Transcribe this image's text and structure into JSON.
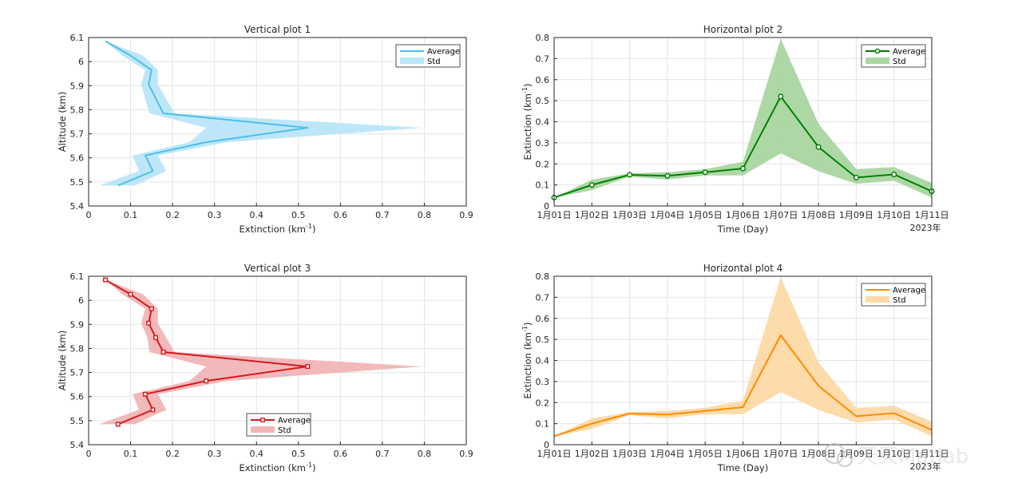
{
  "chart_data": [
    {
      "type": "line",
      "orientation": "vertical",
      "title": "Vertical plot 1",
      "xlabel": "Extinction (km",
      "xlabel_sup": "-1",
      "xlabel_end": ")",
      "ylabel": "Altitude (km)",
      "xlim": [
        0,
        0.9
      ],
      "ylim": [
        5.4,
        6.1
      ],
      "xticks": [
        "0",
        "0.1",
        "0.2",
        "0.3",
        "0.4",
        "0.5",
        "0.6",
        "0.7",
        "0.8",
        "0.9"
      ],
      "yticks": [
        "5.4",
        "5.5",
        "5.6",
        "5.7",
        "5.8",
        "5.9",
        "6",
        "6.1"
      ],
      "color": "#4DBEEE",
      "fill_color": "#B9E6F8",
      "marker": "none",
      "legend_position": "top-right",
      "legend": [
        "Average",
        "Std"
      ],
      "altitude": [
        5.485,
        5.545,
        5.61,
        5.665,
        5.725,
        5.785,
        5.905,
        5.965,
        6.025,
        6.085
      ],
      "average": [
        0.07,
        0.153,
        0.135,
        0.28,
        0.522,
        0.178,
        0.143,
        0.15,
        0.1,
        0.04
      ],
      "lower": [
        0.025,
        0.12,
        0.105,
        0.24,
        0.28,
        0.145,
        0.125,
        0.135,
        0.08,
        0.04
      ],
      "upper": [
        0.11,
        0.185,
        0.165,
        0.33,
        0.795,
        0.205,
        0.165,
        0.165,
        0.13,
        0.04
      ]
    },
    {
      "type": "line",
      "orientation": "horizontal",
      "title": "Horizontal plot 2",
      "xlabel": "Time (Day)",
      "ylabel": "Extinction (km",
      "ylabel_sup": "-1",
      "ylabel_end": ")",
      "xlim": [
        0,
        10
      ],
      "ylim": [
        0,
        0.8
      ],
      "categories": [
        "1月01日",
        "1月02日",
        "1月03日",
        "1月04日",
        "1月05日",
        "1月06日",
        "1月07日",
        "1月08日",
        "1月09日",
        "1月10日",
        "1月11日"
      ],
      "year_label": "2023年",
      "yticks": [
        "0",
        "0.1",
        "0.2",
        "0.3",
        "0.4",
        "0.5",
        "0.6",
        "0.7",
        "0.8"
      ],
      "color": "#007F00",
      "fill_color": "#A9D6A1",
      "marker": "circle",
      "legend_position": "top-right",
      "legend": [
        "Average",
        "Std"
      ],
      "average": [
        0.04,
        0.1,
        0.148,
        0.143,
        0.16,
        0.178,
        0.52,
        0.28,
        0.135,
        0.15,
        0.07
      ],
      "lower": [
        0.04,
        0.075,
        0.14,
        0.125,
        0.145,
        0.145,
        0.25,
        0.165,
        0.105,
        0.12,
        0.04
      ],
      "upper": [
        0.04,
        0.125,
        0.155,
        0.16,
        0.175,
        0.21,
        0.795,
        0.39,
        0.175,
        0.185,
        0.11
      ]
    },
    {
      "type": "line",
      "orientation": "vertical",
      "title": "Vertical plot 3",
      "xlabel": "Extinction (km",
      "xlabel_sup": "-1",
      "xlabel_end": ")",
      "ylabel": "Altitude (km)",
      "xlim": [
        0,
        0.9
      ],
      "ylim": [
        5.4,
        6.1
      ],
      "xticks": [
        "0",
        "0.1",
        "0.2",
        "0.3",
        "0.4",
        "0.5",
        "0.6",
        "0.7",
        "0.8",
        "0.9"
      ],
      "yticks": [
        "5.4",
        "5.5",
        "5.6",
        "5.7",
        "5.8",
        "5.9",
        "6",
        "6.1"
      ],
      "color": "#D7191C",
      "fill_color": "#F1B5B6",
      "marker": "square",
      "legend_position": "bottom-center",
      "legend": [
        "Average",
        "Std"
      ],
      "altitude": [
        5.485,
        5.545,
        5.61,
        5.665,
        5.725,
        5.785,
        5.845,
        5.905,
        5.965,
        6.025,
        6.085
      ],
      "average": [
        0.07,
        0.153,
        0.135,
        0.28,
        0.522,
        0.178,
        0.16,
        0.143,
        0.15,
        0.1,
        0.04
      ],
      "lower": [
        0.025,
        0.12,
        0.105,
        0.24,
        0.28,
        0.145,
        0.14,
        0.125,
        0.135,
        0.08,
        0.04
      ],
      "upper": [
        0.11,
        0.185,
        0.165,
        0.33,
        0.795,
        0.205,
        0.185,
        0.165,
        0.165,
        0.13,
        0.04
      ]
    },
    {
      "type": "line",
      "orientation": "horizontal",
      "title": "Horizontal plot 4",
      "xlabel": "Time (Day)",
      "ylabel": "Extinction (km",
      "ylabel_sup": "-1",
      "ylabel_end": ")",
      "xlim": [
        0,
        10
      ],
      "ylim": [
        0,
        0.8
      ],
      "categories": [
        "1月01日",
        "1月02日",
        "1月03日",
        "1月04日",
        "1月05日",
        "1月06日",
        "1月07日",
        "1月08日",
        "1月09日",
        "1月10日",
        "1月11日"
      ],
      "year_label": "2023年",
      "yticks": [
        "0",
        "0.1",
        "0.2",
        "0.3",
        "0.4",
        "0.5",
        "0.6",
        "0.7",
        "0.8"
      ],
      "color": "#FF8C00",
      "fill_color": "#FDD9A6",
      "marker": "none",
      "legend_position": "top-right",
      "legend": [
        "Average",
        "Std"
      ],
      "average": [
        0.04,
        0.1,
        0.148,
        0.143,
        0.16,
        0.178,
        0.52,
        0.28,
        0.135,
        0.15,
        0.07
      ],
      "lower": [
        0.04,
        0.075,
        0.14,
        0.125,
        0.145,
        0.145,
        0.25,
        0.165,
        0.105,
        0.12,
        0.04
      ],
      "upper": [
        0.04,
        0.125,
        0.155,
        0.16,
        0.175,
        0.21,
        0.795,
        0.39,
        0.175,
        0.185,
        0.11
      ]
    }
  ],
  "watermark": {
    "text": "天天Matlab",
    "icon": "wechat-icon"
  }
}
